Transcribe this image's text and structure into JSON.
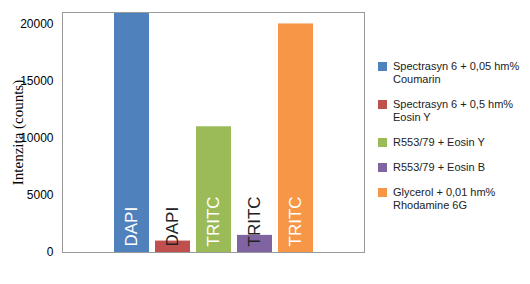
{
  "chart_data": {
    "type": "bar",
    "y_label": "Intenzita (counts)",
    "categories": [
      null,
      null,
      null,
      null,
      null
    ],
    "series": [
      {
        "name": "Spectrasyn 6 + 0,05 hm% Coumarin",
        "color": "#4F81BD",
        "values": [
          21000,
          null,
          null,
          null,
          null
        ]
      },
      {
        "name": "Spectrasyn 6 + 0,5 hm% Eosin Y",
        "color": "#C0504D",
        "values": [
          null,
          1000,
          null,
          null,
          null
        ]
      },
      {
        "name": "R553/79 + Eosin Y",
        "color": "#9BBB59",
        "values": [
          null,
          null,
          11000,
          null,
          null
        ]
      },
      {
        "name": "R553/79 + Eosin B",
        "color": "#8064A2",
        "values": [
          null,
          null,
          null,
          1500,
          null
        ]
      },
      {
        "name": "Glycerol + 0,01 hm% Rhodamine 6G",
        "color": "#F79646",
        "values": [
          null,
          null,
          null,
          null,
          20000
        ]
      }
    ],
    "bar_texts": [
      "DAPI",
      "DAPI",
      "TRITC",
      "TRITC",
      "TRITC"
    ],
    "ylim": [
      0,
      21000
    ],
    "yticks": [
      0,
      5000,
      10000,
      15000,
      20000
    ],
    "grid": false,
    "legend": "right",
    "tick_labels": "y"
  }
}
